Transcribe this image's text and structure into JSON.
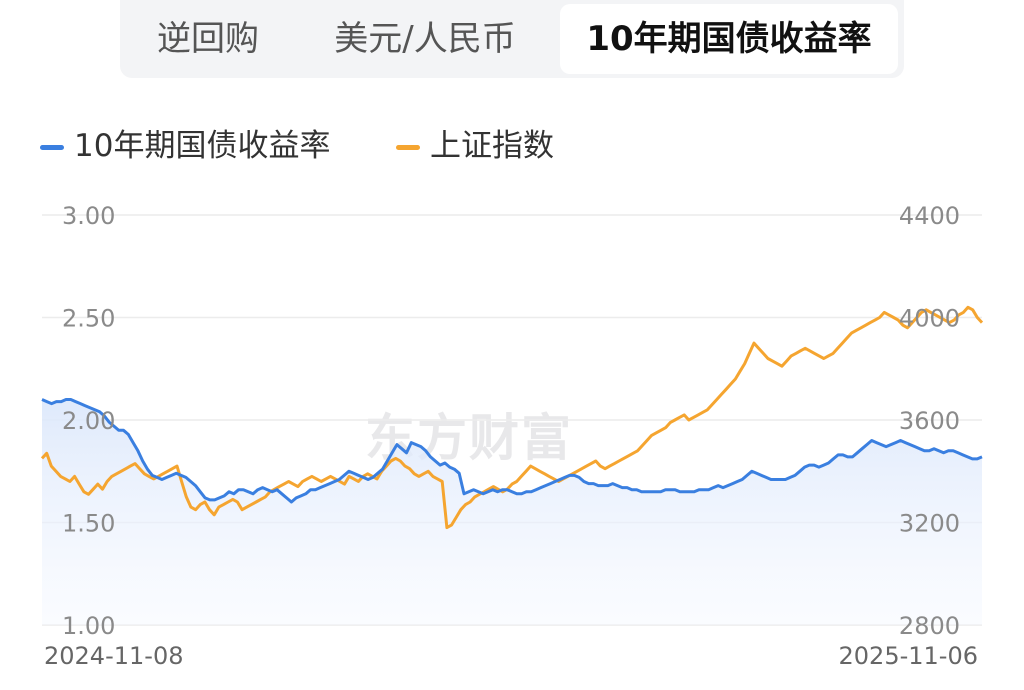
{
  "tabs": [
    {
      "label": "逆回购",
      "active": false
    },
    {
      "label": "美元/人民币",
      "active": false
    },
    {
      "label": "10年期国债收益率",
      "active": true
    }
  ],
  "watermark": "东方财富",
  "chart_data": {
    "type": "line",
    "legend_position": "top-left",
    "grid": true,
    "x_start_label": "2024-11-08",
    "x_end_label": "2025-11-06",
    "y_left": {
      "ticks": [
        "3.00",
        "2.50",
        "2.00",
        "1.50",
        "1.00"
      ],
      "range": [
        1.0,
        3.0
      ]
    },
    "y_right": {
      "ticks": [
        "4400",
        "4000",
        "3600",
        "3200",
        "2800"
      ],
      "range": [
        2800,
        4400
      ]
    },
    "colors": {
      "bond": "#3a7fe0",
      "index": "#f5a530",
      "area": "#e6efff"
    },
    "series": [
      {
        "name": "10年期国债收益率",
        "axis": "left",
        "values": [
          2.1,
          2.09,
          2.08,
          2.09,
          2.09,
          2.1,
          2.1,
          2.09,
          2.08,
          2.07,
          2.06,
          2.05,
          2.04,
          2.02,
          1.99,
          1.97,
          1.95,
          1.95,
          1.93,
          1.89,
          1.85,
          1.8,
          1.76,
          1.73,
          1.72,
          1.71,
          1.72,
          1.73,
          1.74,
          1.73,
          1.72,
          1.7,
          1.68,
          1.65,
          1.62,
          1.61,
          1.61,
          1.62,
          1.63,
          1.65,
          1.64,
          1.66,
          1.66,
          1.65,
          1.64,
          1.66,
          1.67,
          1.66,
          1.65,
          1.66,
          1.64,
          1.62,
          1.6,
          1.62,
          1.63,
          1.64,
          1.66,
          1.66,
          1.67,
          1.68,
          1.69,
          1.7,
          1.71,
          1.73,
          1.75,
          1.74,
          1.73,
          1.72,
          1.71,
          1.72,
          1.74,
          1.76,
          1.8,
          1.84,
          1.88,
          1.86,
          1.84,
          1.89,
          1.88,
          1.87,
          1.85,
          1.82,
          1.8,
          1.78,
          1.79,
          1.77,
          1.76,
          1.74,
          1.64,
          1.65,
          1.66,
          1.65,
          1.64,
          1.65,
          1.66,
          1.65,
          1.66,
          1.66,
          1.65,
          1.64,
          1.64,
          1.65,
          1.65,
          1.66,
          1.67,
          1.68,
          1.69,
          1.7,
          1.71,
          1.72,
          1.73,
          1.73,
          1.72,
          1.7,
          1.69,
          1.69,
          1.68,
          1.68,
          1.68,
          1.69,
          1.68,
          1.67,
          1.67,
          1.66,
          1.66,
          1.65,
          1.65,
          1.65,
          1.65,
          1.65,
          1.66,
          1.66,
          1.66,
          1.65,
          1.65,
          1.65,
          1.65,
          1.66,
          1.66,
          1.66,
          1.67,
          1.68,
          1.67,
          1.68,
          1.69,
          1.7,
          1.71,
          1.73,
          1.75,
          1.74,
          1.73,
          1.72,
          1.71,
          1.71,
          1.71,
          1.71,
          1.72,
          1.73,
          1.75,
          1.77,
          1.78,
          1.78,
          1.77,
          1.78,
          1.79,
          1.81,
          1.83,
          1.83,
          1.82,
          1.82,
          1.84,
          1.86,
          1.88,
          1.9,
          1.89,
          1.88,
          1.87,
          1.88,
          1.89,
          1.9,
          1.89,
          1.88,
          1.87,
          1.86,
          1.85,
          1.85,
          1.86,
          1.85,
          1.84,
          1.85,
          1.85,
          1.84,
          1.83,
          1.82,
          1.81,
          1.81,
          1.82
        ]
      },
      {
        "name": "上证指数",
        "axis": "right",
        "values": [
          3450,
          3470,
          3420,
          3400,
          3380,
          3370,
          3360,
          3380,
          3350,
          3320,
          3310,
          3330,
          3350,
          3330,
          3360,
          3380,
          3390,
          3400,
          3410,
          3420,
          3430,
          3410,
          3390,
          3380,
          3370,
          3380,
          3390,
          3400,
          3410,
          3420,
          3360,
          3300,
          3260,
          3250,
          3270,
          3280,
          3250,
          3230,
          3260,
          3270,
          3280,
          3290,
          3280,
          3250,
          3260,
          3270,
          3280,
          3290,
          3300,
          3320,
          3330,
          3340,
          3350,
          3360,
          3350,
          3340,
          3360,
          3370,
          3380,
          3370,
          3360,
          3370,
          3380,
          3370,
          3360,
          3350,
          3380,
          3370,
          3360,
          3380,
          3390,
          3380,
          3370,
          3400,
          3420,
          3440,
          3450,
          3440,
          3420,
          3410,
          3390,
          3380,
          3390,
          3400,
          3380,
          3370,
          3360,
          3180,
          3190,
          3220,
          3250,
          3270,
          3280,
          3300,
          3310,
          3320,
          3330,
          3340,
          3330,
          3320,
          3330,
          3350,
          3360,
          3380,
          3400,
          3420,
          3410,
          3400,
          3390,
          3380,
          3370,
          3360,
          3370,
          3380,
          3390,
          3400,
          3410,
          3420,
          3430,
          3440,
          3420,
          3410,
          3420,
          3430,
          3440,
          3450,
          3460,
          3470,
          3480,
          3500,
          3520,
          3540,
          3550,
          3560,
          3570,
          3590,
          3600,
          3610,
          3620,
          3600,
          3610,
          3620,
          3630,
          3640,
          3660,
          3680,
          3700,
          3720,
          3740,
          3760,
          3790,
          3820,
          3860,
          3900,
          3880,
          3860,
          3840,
          3830,
          3820,
          3810,
          3830,
          3850,
          3860,
          3870,
          3880,
          3870,
          3860,
          3850,
          3840,
          3850,
          3860,
          3880,
          3900,
          3920,
          3940,
          3950,
          3960,
          3970,
          3980,
          3990,
          4000,
          4020,
          4010,
          4000,
          3990,
          3970,
          3960,
          3980,
          4000,
          4020,
          4030,
          4020,
          4010,
          4000,
          3990,
          3980,
          3990,
          4010,
          4020,
          4040,
          4030,
          4000,
          3980
        ]
      }
    ]
  }
}
